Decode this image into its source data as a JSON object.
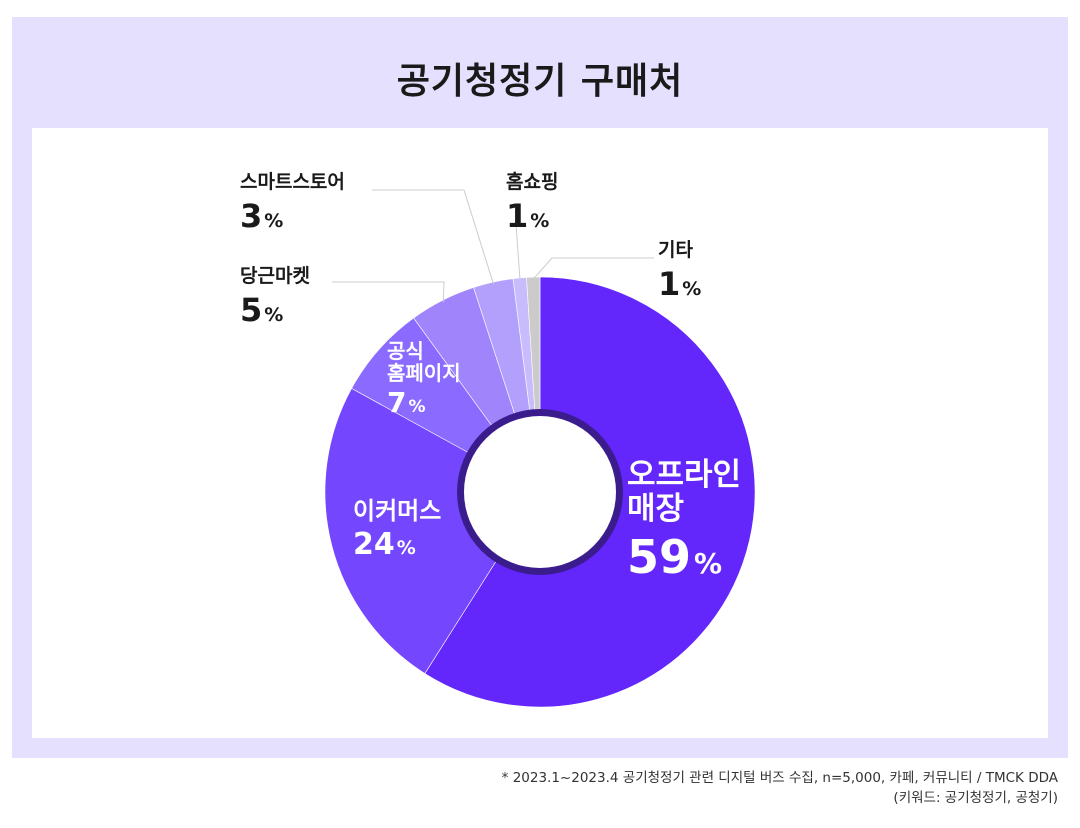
{
  "title": "공기청정기 구매처",
  "chart_data": {
    "type": "pie",
    "title": "공기청정기 구매처",
    "donut": true,
    "unit": "%",
    "slices": [
      {
        "name": "오프라인 매장",
        "name_lines": [
          "오프라인",
          "매장"
        ],
        "value": 59,
        "color": "#6326fb"
      },
      {
        "name": "이커머스",
        "name_lines": [
          "이커머스"
        ],
        "value": 24,
        "color": "#7446fd"
      },
      {
        "name": "공식 홈페이지",
        "name_lines": [
          "공식",
          "홈페이지"
        ],
        "value": 7,
        "color": "#8a6aff"
      },
      {
        "name": "당근마켓",
        "name_lines": [
          "당근마켓"
        ],
        "value": 5,
        "color": "#9f84fc"
      },
      {
        "name": "스마트스토어",
        "name_lines": [
          "스마트스토어"
        ],
        "value": 3,
        "color": "#b3a0fc"
      },
      {
        "name": "홈쇼핑",
        "name_lines": [
          "홈쇼핑"
        ],
        "value": 1,
        "color": "#c9bcfc"
      },
      {
        "name": "기타",
        "name_lines": [
          "기타"
        ],
        "value": 1,
        "color": "#cbcbcb"
      }
    ]
  },
  "labels": {
    "offline": {
      "line1": "오프라인",
      "line2": "매장",
      "value": "59",
      "unit": "%"
    },
    "ecommerce": {
      "line1": "이커머스",
      "value": "24",
      "unit": "%"
    },
    "official": {
      "line1": "공식",
      "line2": "홈페이지",
      "value": "7",
      "unit": "%"
    },
    "daangn": {
      "line1": "당근마켓",
      "value": "5",
      "unit": "%"
    },
    "smartstore": {
      "line1": "스마트스토어",
      "value": "3",
      "unit": "%"
    },
    "homeshopping": {
      "line1": "홈쇼핑",
      "value": "1",
      "unit": "%"
    },
    "etc": {
      "line1": "기타",
      "value": "1",
      "unit": "%"
    }
  },
  "colors": {
    "background": "#e5e0fd",
    "panel": "#ffffff",
    "hole_ring": "#3a1c8c",
    "leader_line": "#cccccc"
  },
  "footnote": {
    "line1": "* 2023.1~2023.4 공기청정기 관련 디지털 버즈 수집, n=5,000, 카페, 커뮤니티 / TMCK DDA",
    "line2": "(키워드: 공기청정기, 공청기)"
  }
}
